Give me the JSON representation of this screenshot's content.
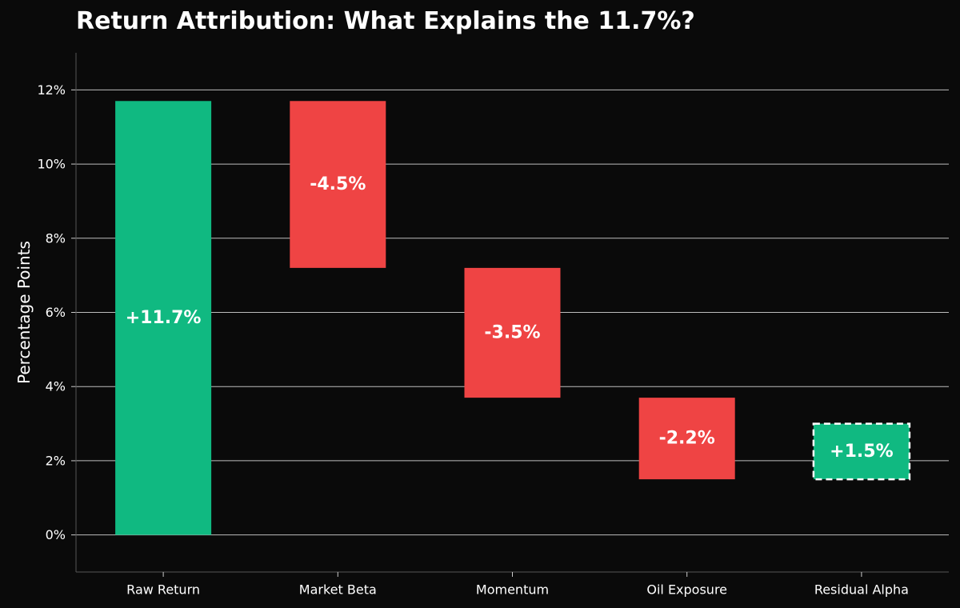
{
  "chart_data": {
    "type": "bar",
    "subtype": "waterfall",
    "title": "Return Attribution: What Explains the 11.7%?",
    "xlabel": "",
    "ylabel": "Percentage Points",
    "ylim": [
      -1,
      13
    ],
    "yticks": [
      0,
      2,
      4,
      6,
      8,
      10,
      12
    ],
    "ytick_labels": [
      "0%",
      "2%",
      "4%",
      "6%",
      "8%",
      "10%",
      "12%"
    ],
    "grid": true,
    "categories": [
      "Raw Return",
      "Market Beta",
      "Momentum",
      "Oil Exposure",
      "Residual Alpha"
    ],
    "values": [
      11.7,
      -4.5,
      -3.5,
      -2.2,
      1.5
    ],
    "bases": [
      0,
      11.7,
      7.2,
      3.7,
      1.5
    ],
    "data_labels": [
      "+11.7%",
      "-4.5%",
      "-3.5%",
      "-2.2%",
      "+1.5%"
    ],
    "bar_colors": [
      "#10b981",
      "#ef4444",
      "#ef4444",
      "#ef4444",
      "#10b981"
    ],
    "dashed_outline": [
      false,
      false,
      false,
      false,
      true
    ]
  },
  "colors": {
    "background": "#0a0a0a",
    "text": "#ffffff",
    "grid": "#bdbdbd",
    "axis": "#555555",
    "positive": "#10b981",
    "negative": "#ef4444"
  }
}
